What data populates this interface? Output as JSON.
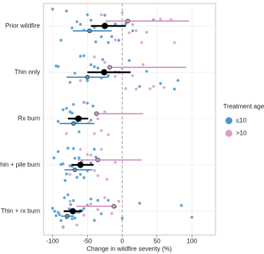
{
  "chart_data": {
    "type": "forest",
    "x_label": "Change in wildfire severity (%)",
    "categories": [
      "Prior wildfire",
      "Thin only",
      "Rx burn",
      "Thin + pile burn",
      "Thin + rx burn"
    ],
    "xlim": [
      -113,
      134
    ],
    "xticks": [
      -100,
      -50,
      0,
      50,
      100
    ],
    "grid": true,
    "vline": 0,
    "legend_title": "Treatment age",
    "legend_position": "right",
    "overall": {
      "color": "#000000",
      "estimates": [
        -25,
        -26,
        -63,
        -60,
        -71
      ],
      "lower": [
        -45,
        -50,
        -78,
        -73,
        -84
      ],
      "upper": [
        5,
        12,
        -49,
        -41,
        -58
      ]
    },
    "series": [
      {
        "name": "≤10",
        "color": "#4f97c9",
        "estimates": [
          -47,
          -50,
          -70,
          -68,
          -79
        ],
        "lower": [
          -71,
          -80,
          -90,
          -83,
          -88
        ],
        "upper": [
          -15,
          -20,
          -40,
          -43,
          -69
        ],
        "points": [
          [
            -100,
            -88,
            -80,
            -72,
            -65,
            -60,
            -55,
            -50,
            -45,
            -40,
            -38,
            -30,
            -25,
            -20,
            -15,
            -10,
            -5,
            5,
            15,
            45
          ],
          [
            -95,
            -92,
            -75,
            -68,
            -60,
            -55,
            -50,
            -45,
            -40,
            -35,
            -30,
            -28,
            -20,
            -10,
            -5,
            10,
            25,
            35,
            55,
            75,
            80
          ],
          [
            -92,
            -85,
            -80,
            -75,
            -72,
            -70,
            -68,
            -65,
            -62,
            -60,
            -55,
            -50,
            -45,
            -42
          ],
          [
            -98,
            -92,
            -88,
            -85,
            -82,
            -80,
            -78,
            -75,
            -72,
            -70,
            -68,
            -65,
            -62,
            -60,
            -58,
            -55,
            -50,
            -45,
            -40,
            -38
          ],
          [
            -100,
            -97,
            -95,
            -92,
            -90,
            -88,
            -85,
            -83,
            -80,
            -78,
            -76,
            -74,
            -72,
            -70,
            -68,
            -65,
            -62,
            -60,
            -58,
            -55,
            -50,
            -45,
            -40,
            -35,
            -30,
            -20,
            -10,
            0,
            25,
            85,
            100
          ]
        ]
      },
      {
        "name": ">10",
        "color": "#d99cc8",
        "estimates": [
          8,
          -18,
          -37,
          -35,
          -12
        ],
        "lower": [
          -20,
          -20,
          -37,
          -64,
          -66
        ],
        "upper": [
          96,
          92,
          30,
          28,
          -10
        ],
        "points": [
          [
            -45,
            -30,
            -22,
            -10,
            0,
            10,
            15,
            20,
            28,
            35,
            55,
            70,
            75
          ],
          [
            -60,
            -40,
            -25,
            -10,
            0,
            5,
            15,
            20,
            30,
            40,
            45,
            60
          ],
          [
            -80,
            -60,
            -55,
            -48,
            -40,
            -35,
            -30,
            -25,
            -20
          ],
          [
            -75,
            -60,
            -50,
            -45,
            -40,
            -35,
            -30,
            -22,
            -10
          ],
          [
            -85,
            -75,
            -65,
            -55,
            -45,
            -35,
            -25,
            -15,
            -5
          ]
        ]
      }
    ]
  }
}
